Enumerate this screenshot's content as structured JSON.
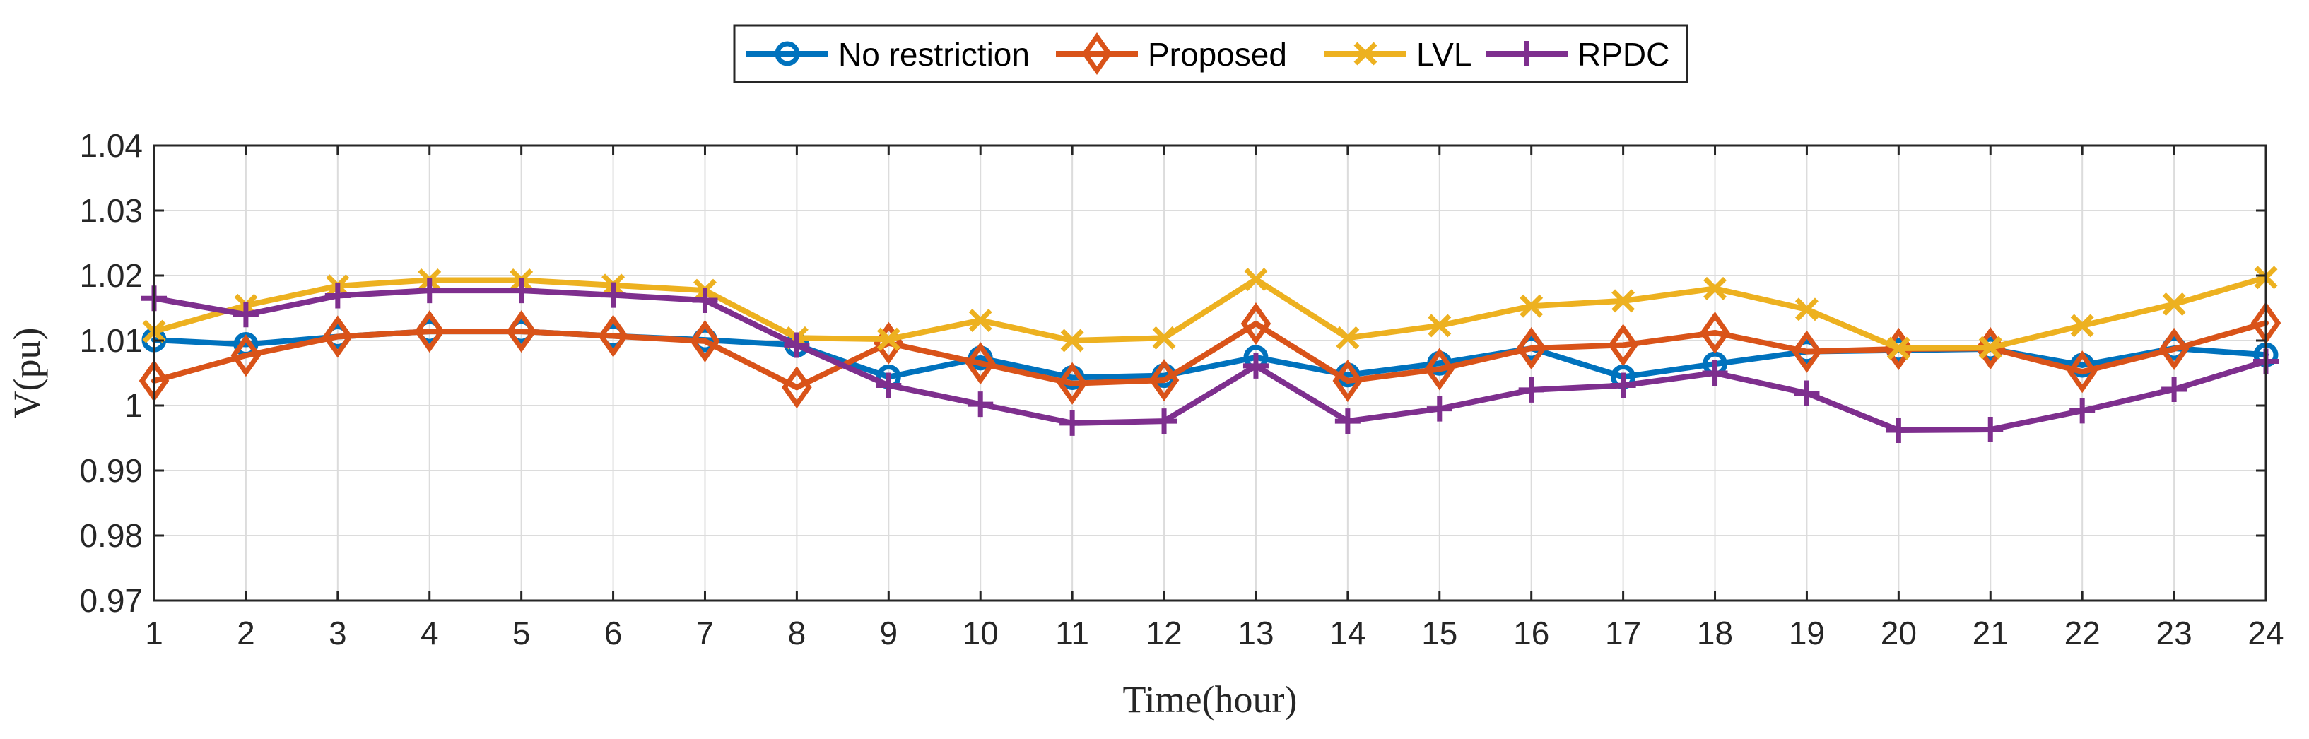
{
  "chart_data": {
    "type": "line",
    "title": "",
    "xlabel": "Time(hour)",
    "ylabel": "V(pu)",
    "xlim": [
      1,
      24
    ],
    "ylim": [
      0.97,
      1.04
    ],
    "grid": true,
    "legend_position": "top-center",
    "x": [
      1,
      2,
      3,
      4,
      5,
      6,
      7,
      8,
      9,
      10,
      11,
      12,
      13,
      14,
      15,
      16,
      17,
      18,
      19,
      20,
      21,
      22,
      23,
      24
    ],
    "x_ticks": [
      "1",
      "2",
      "3",
      "4",
      "5",
      "6",
      "7",
      "8",
      "9",
      "10",
      "11",
      "12",
      "13",
      "14",
      "15",
      "16",
      "17",
      "18",
      "19",
      "20",
      "21",
      "22",
      "23",
      "24"
    ],
    "y_ticks": [
      {
        "value": 0.97,
        "label": "0.97"
      },
      {
        "value": 0.98,
        "label": "0.98"
      },
      {
        "value": 0.99,
        "label": "0.99"
      },
      {
        "value": 1.0,
        "label": "1"
      },
      {
        "value": 1.01,
        "label": "1.01"
      },
      {
        "value": 1.02,
        "label": "1.02"
      },
      {
        "value": 1.03,
        "label": "1.03"
      },
      {
        "value": 1.04,
        "label": "1.04"
      }
    ],
    "series": [
      {
        "name": "No restriction",
        "color": "#0072BD",
        "marker": "circle",
        "values": [
          1.0101,
          1.0094,
          1.0106,
          1.0114,
          1.0114,
          1.0107,
          1.0101,
          1.0093,
          1.0044,
          1.0073,
          1.0043,
          1.0046,
          1.0074,
          1.0047,
          1.0065,
          1.0088,
          1.0044,
          1.0064,
          1.0083,
          1.0085,
          1.0087,
          1.0062,
          1.0088,
          1.0078
        ]
      },
      {
        "name": "Proposed",
        "color": "#D95319",
        "marker": "diamond",
        "values": [
          1.0038,
          1.0077,
          1.0106,
          1.0114,
          1.0114,
          1.0107,
          1.0099,
          1.0028,
          1.0096,
          1.0065,
          1.0034,
          1.0039,
          1.0126,
          1.0038,
          1.0056,
          1.0088,
          1.0093,
          1.0112,
          1.0083,
          1.0087,
          1.0088,
          1.0052,
          1.0087,
          1.0127
        ]
      },
      {
        "name": "LVL",
        "color": "#EDB120",
        "marker": "x",
        "values": [
          1.0114,
          1.0154,
          1.0184,
          1.0193,
          1.0193,
          1.0185,
          1.0177,
          1.0104,
          1.0102,
          1.0131,
          1.01,
          1.0104,
          1.0194,
          1.0104,
          1.0123,
          1.0153,
          1.0161,
          1.018,
          1.0148,
          1.0088,
          1.0089,
          1.0123,
          1.0156,
          1.0197
        ]
      },
      {
        "name": "RPDC",
        "color": "#7E2F8E",
        "marker": "plus",
        "values": [
          1.0165,
          1.014,
          1.0169,
          1.0177,
          1.0177,
          1.017,
          1.0162,
          1.0093,
          1.0031,
          1.0002,
          0.9973,
          0.9976,
          1.0061,
          0.9976,
          0.9995,
          1.0024,
          1.0031,
          1.005,
          1.0019,
          0.9962,
          0.9963,
          0.9992,
          1.0025,
          1.0068
        ]
      }
    ]
  }
}
